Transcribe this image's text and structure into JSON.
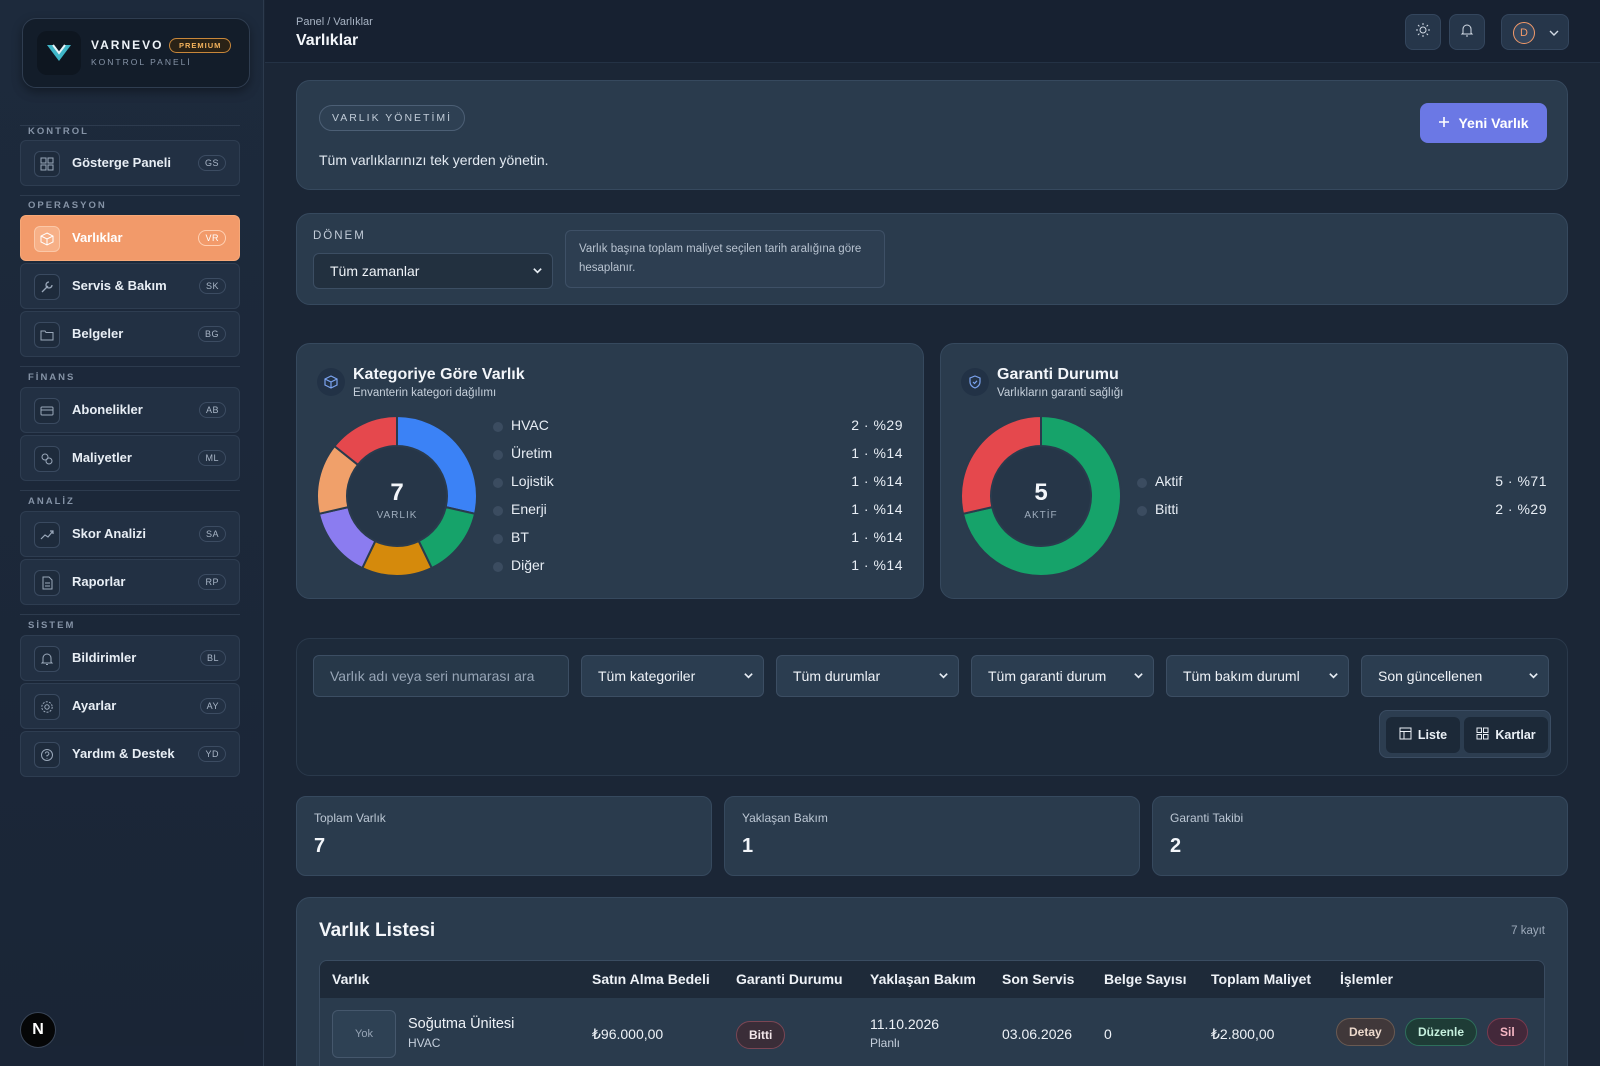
{
  "brand": {
    "name": "VARNEVO",
    "badge": "PREMIUM",
    "sub": "KONTROL PANELİ"
  },
  "sidebar": {
    "sections": [
      {
        "label": "KONTROL"
      },
      {
        "label": "OPERASYON"
      },
      {
        "label": "FİNANS"
      },
      {
        "label": "ANALİZ"
      },
      {
        "label": "SİSTEM"
      }
    ],
    "items": [
      {
        "label": "Gösterge Paneli",
        "badge": "GS",
        "icon": "dashboard-icon"
      },
      {
        "label": "Varlıklar",
        "badge": "VR",
        "icon": "box-icon",
        "active": true
      },
      {
        "label": "Servis & Bakım",
        "badge": "SK",
        "icon": "wrench-icon"
      },
      {
        "label": "Belgeler",
        "badge": "BG",
        "icon": "folder-icon"
      },
      {
        "label": "Abonelikler",
        "badge": "AB",
        "icon": "card-icon"
      },
      {
        "label": "Maliyetler",
        "badge": "ML",
        "icon": "coins-icon"
      },
      {
        "label": "Skor Analizi",
        "badge": "SA",
        "icon": "trend-icon"
      },
      {
        "label": "Raporlar",
        "badge": "RP",
        "icon": "document-icon"
      },
      {
        "label": "Bildirimler",
        "badge": "BL",
        "icon": "bell-icon"
      },
      {
        "label": "Ayarlar",
        "badge": "AY",
        "icon": "gear-icon"
      },
      {
        "label": "Yardım & Destek",
        "badge": "YD",
        "icon": "help-icon"
      }
    ],
    "foot_badge": "N"
  },
  "header": {
    "breadcrumb": "Panel / Varlıklar",
    "title": "Varlıklar",
    "avatar": "D"
  },
  "hero": {
    "tag": "VARLIK YÖNETİMİ",
    "text": "Tüm varlıklarınızı tek yerden yönetin.",
    "new_button": "Yeni Varlık"
  },
  "period": {
    "label": "DÖNEM",
    "selected": "Tüm zamanlar",
    "note": "Varlık başına toplam maliyet seçilen tarih aralığına göre hesaplanır."
  },
  "chart_data": [
    {
      "type": "pie",
      "title": "Kategoriye Göre Varlık",
      "subtitle": "Envanterin kategori dağılımı",
      "center_value": "7",
      "center_label": "VARLIK",
      "categories": [
        "HVAC",
        "Üretim",
        "Lojistik",
        "Enerji",
        "BT",
        "Diğer"
      ],
      "values": [
        2,
        1,
        1,
        1,
        1,
        1
      ],
      "labels": [
        "2 · %29",
        "1 · %14",
        "1 · %14",
        "1 · %14",
        "1 · %14",
        "1 · %14"
      ],
      "colors": [
        "#3b82f6",
        "#16a36a",
        "#d58a0c",
        "#8b7cf0",
        "#f0a06a",
        "#e5484d"
      ]
    },
    {
      "type": "pie",
      "title": "Garanti Durumu",
      "subtitle": "Varlıkların garanti sağlığı",
      "center_value": "5",
      "center_label": "AKTİF",
      "categories": [
        "Aktif",
        "Bitti"
      ],
      "values": [
        5,
        2
      ],
      "labels": [
        "5 · %71",
        "2 · %29"
      ],
      "colors": [
        "#16a36a",
        "#e5484d"
      ]
    }
  ],
  "filters": {
    "search_placeholder": "Varlık adı veya seri numarası ara",
    "selects": [
      "Tüm kategoriler",
      "Tüm durumlar",
      "Tüm garanti durum",
      "Tüm bakım duruml",
      "Son güncellenen"
    ],
    "view_list": "Liste",
    "view_cards": "Kartlar"
  },
  "stats": [
    {
      "label": "Toplam Varlık",
      "value": "7"
    },
    {
      "label": "Yaklaşan Bakım",
      "value": "1"
    },
    {
      "label": "Garanti Takibi",
      "value": "2"
    }
  ],
  "list": {
    "title": "Varlık Listesi",
    "count": "7 kayıt",
    "columns": [
      "Varlık",
      "Satın Alma Bedeli",
      "Garanti Durumu",
      "Yaklaşan Bakım",
      "Son Servis",
      "Belge Sayısı",
      "Toplam Maliyet",
      "İşlemler"
    ],
    "rows": [
      {
        "thumb": "Yok",
        "name": "Soğutma Ünitesi",
        "category": "HVAC",
        "price": "₺96.000,00",
        "warranty": "Bitti",
        "maintenance_date": "11.10.2026",
        "maintenance_status": "Planlı",
        "last_service": "03.06.2026",
        "docs": "0",
        "total_cost": "₺2.800,00",
        "actions": [
          "Detay",
          "Düzenle",
          "Sil"
        ]
      }
    ]
  }
}
